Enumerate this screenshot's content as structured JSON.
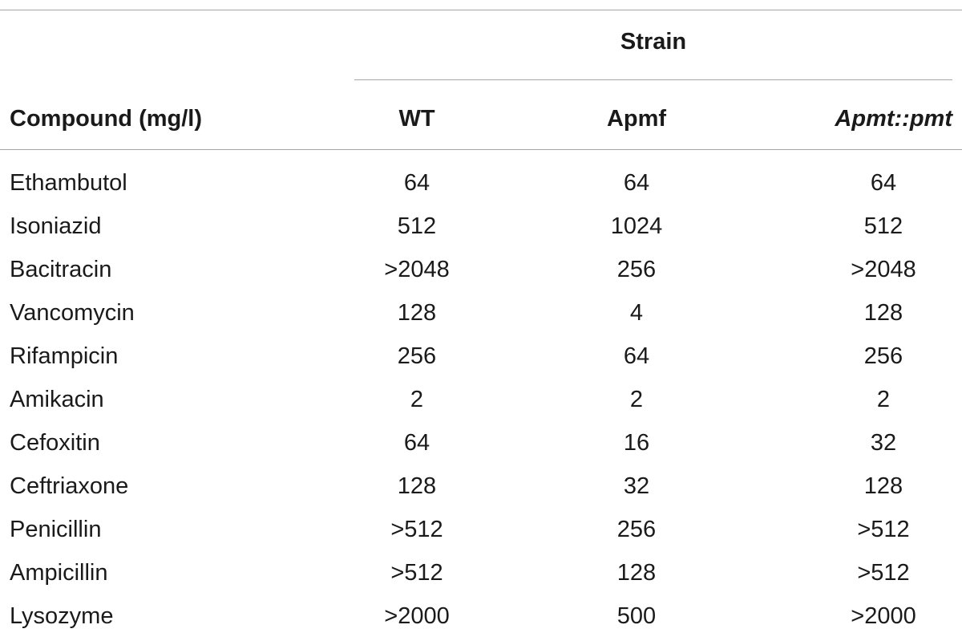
{
  "table": {
    "strain_label": "Strain",
    "headers": {
      "compound": "Compound (mg/l)",
      "wt": "WT",
      "apmf": "Apmf",
      "complement": "Apmt::pmt"
    },
    "rows": [
      {
        "compound": "Ethambutol",
        "wt": "64",
        "apmf": "64",
        "complement": "64"
      },
      {
        "compound": "Isoniazid",
        "wt": "512",
        "apmf": "1024",
        "complement": "512"
      },
      {
        "compound": "Bacitracin",
        "wt": ">2048",
        "apmf": "256",
        "complement": ">2048"
      },
      {
        "compound": "Vancomycin",
        "wt": "128",
        "apmf": "4",
        "complement": "128"
      },
      {
        "compound": "Rifampicin",
        "wt": "256",
        "apmf": "64",
        "complement": "256"
      },
      {
        "compound": "Amikacin",
        "wt": "2",
        "apmf": "2",
        "complement": "2"
      },
      {
        "compound": "Cefoxitin",
        "wt": "64",
        "apmf": "16",
        "complement": "32"
      },
      {
        "compound": "Ceftriaxone",
        "wt": "128",
        "apmf": "32",
        "complement": "128"
      },
      {
        "compound": "Penicillin",
        "wt": ">512",
        "apmf": "256",
        "complement": ">512"
      },
      {
        "compound": "Ampicillin",
        "wt": ">512",
        "apmf": "128",
        "complement": ">512"
      },
      {
        "compound": "Lysozyme",
        "wt": ">2000",
        "apmf": "500",
        "complement": ">2000"
      }
    ]
  }
}
